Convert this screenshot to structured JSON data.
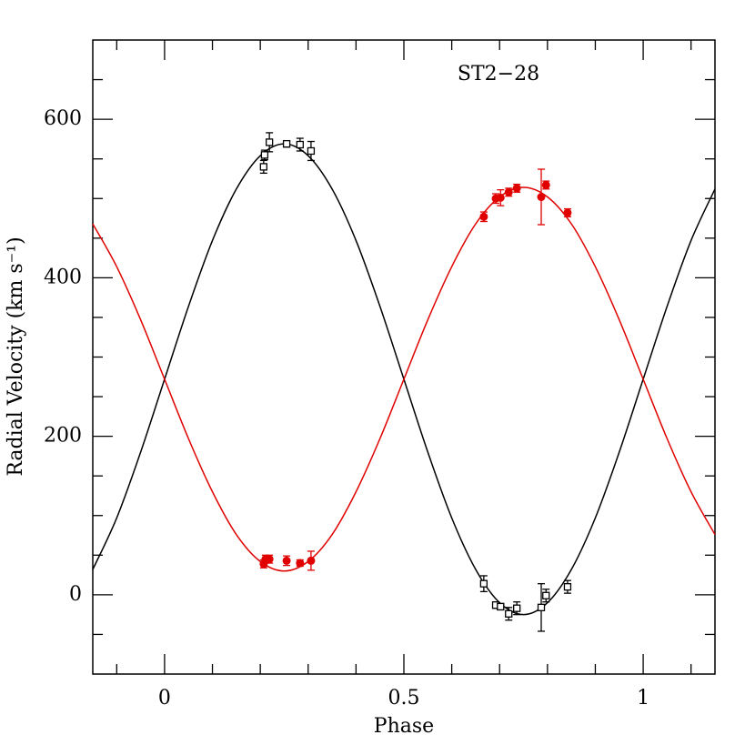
{
  "chart_data": {
    "type": "scatter",
    "annotation": "ST2−28",
    "x_label": "Phase",
    "y_label": "Radial Velocity (km s⁻¹)",
    "xlim": [
      -0.15,
      1.15
    ],
    "ylim": [
      -100,
      700
    ],
    "xticks": [
      0,
      0.5,
      1
    ],
    "yticks": [
      0,
      200,
      400,
      600
    ],
    "xminorticks": [
      -0.1,
      0.1,
      0.2,
      0.3,
      0.4,
      0.6,
      0.7,
      0.8,
      0.9,
      1.1
    ],
    "yminorticks": [
      -50,
      50,
      100,
      150,
      250,
      300,
      350,
      450,
      500,
      550,
      650
    ],
    "curves": [
      {
        "color": "#000000",
        "x": [
          -0.15,
          -0.1,
          -0.05,
          0,
          0.05,
          0.1,
          0.15,
          0.2,
          0.25,
          0.3,
          0.35,
          0.4,
          0.45,
          0.5,
          0.55,
          0.6,
          0.65,
          0.7,
          0.75,
          0.8,
          0.85,
          0.9,
          0.95,
          1,
          1.05,
          1.1,
          1.15
        ],
        "values": [
          32,
          97,
          180,
          272,
          364,
          447,
          512,
          554,
          569,
          554,
          512,
          447,
          364,
          272,
          180,
          97,
          32,
          -10,
          -25,
          -10,
          32,
          97,
          180,
          272,
          364,
          447,
          512
        ]
      },
      {
        "color": "#e00000",
        "x": [
          -0.15,
          -0.1,
          -0.05,
          0,
          0.05,
          0.1,
          0.15,
          0.2,
          0.25,
          0.3,
          0.35,
          0.4,
          0.45,
          0.5,
          0.55,
          0.6,
          0.65,
          0.7,
          0.75,
          0.8,
          0.85,
          0.9,
          0.95,
          1,
          1.05,
          1.1,
          1.15
        ],
        "values": [
          468,
          414,
          347,
          272,
          197,
          130,
          76,
          42,
          30,
          42,
          76,
          130,
          197,
          272,
          347,
          414,
          468,
          502,
          514,
          502,
          468,
          414,
          347,
          272,
          197,
          130,
          76
        ]
      }
    ],
    "series": [
      {
        "color": "#000000",
        "marker": "open-square",
        "x": [
          0.207,
          0.209,
          0.219,
          0.255,
          0.283,
          0.306,
          0.667,
          0.692,
          0.702,
          0.719,
          0.736,
          0.787,
          0.797,
          0.842
        ],
        "values": [
          540,
          555,
          571,
          569,
          568,
          560,
          14,
          -13,
          -15,
          -24,
          -17,
          -16,
          -1,
          10
        ],
        "errors": [
          8,
          6,
          12,
          4,
          8,
          12,
          10,
          4,
          4,
          8,
          8,
          30,
          8,
          8
        ]
      },
      {
        "color": "#e00000",
        "marker": "filled-circle",
        "x": [
          0.207,
          0.211,
          0.219,
          0.255,
          0.283,
          0.306,
          0.667,
          0.692,
          0.702,
          0.719,
          0.736,
          0.787,
          0.797,
          0.842
        ],
        "values": [
          39,
          45,
          45,
          43,
          40,
          43,
          477,
          500,
          501,
          508,
          513,
          502,
          517,
          482
        ],
        "errors": [
          5,
          5,
          5,
          6,
          4,
          12,
          6,
          6,
          10,
          5,
          5,
          35,
          5,
          5
        ]
      }
    ]
  }
}
